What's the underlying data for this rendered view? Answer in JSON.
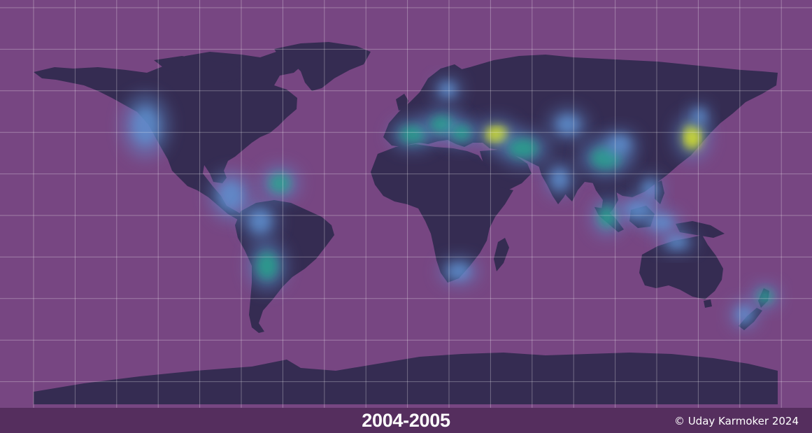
{
  "map": {
    "type": "world-heatmap",
    "projection": "equirectangular",
    "graticule": true,
    "colors": {
      "ocean": "#774682",
      "land": "#352c52",
      "graticule": "#ffffff",
      "heat_low": "#5f8fcf",
      "heat_mid": "#24a98a",
      "heat_high": "#d8e32a"
    },
    "hotspots_description": [
      "California coast",
      "Central America",
      "Caribbean",
      "Andes",
      "Southern Africa",
      "Mediterranean",
      "Turkey / Caucasus",
      "Iran",
      "Himalaya / Myanmar",
      "Sumatra / Java",
      "Japan",
      "New Zealand"
    ]
  },
  "footer": {
    "period": "2004-2005",
    "credit": "© Uday Karmoker 2024"
  }
}
